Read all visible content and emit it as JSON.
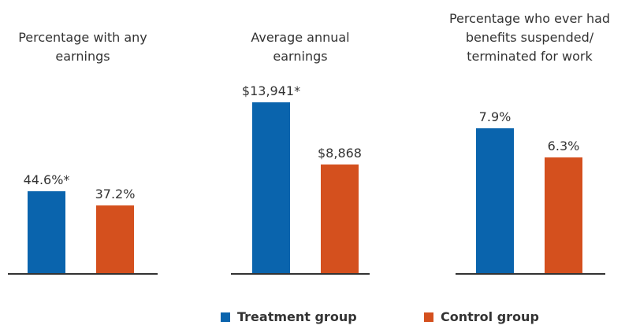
{
  "chart_data": [
    {
      "type": "bar",
      "title": "Percentage with any earnings",
      "values": [
        44.6,
        37.2
      ],
      "value_labels": [
        "44.6%*",
        "37.2%"
      ],
      "ylim": [
        0,
        110
      ]
    },
    {
      "type": "bar",
      "title": "Average annual earnings",
      "values": [
        13941,
        8868
      ],
      "value_labels": [
        "$13,941*",
        "$8,868"
      ],
      "ylim": [
        0,
        16500
      ]
    },
    {
      "type": "bar",
      "title": "Percentage who ever had benefits suspended/ terminated for work",
      "values": [
        7.9,
        6.3
      ],
      "value_labels": [
        "7.9%",
        "6.3%"
      ],
      "ylim": [
        0,
        11
      ]
    }
  ],
  "legend": [
    {
      "name": "Treatment group",
      "color": "#0a64ad"
    },
    {
      "name": "Control group",
      "color": "#d4501e"
    }
  ]
}
